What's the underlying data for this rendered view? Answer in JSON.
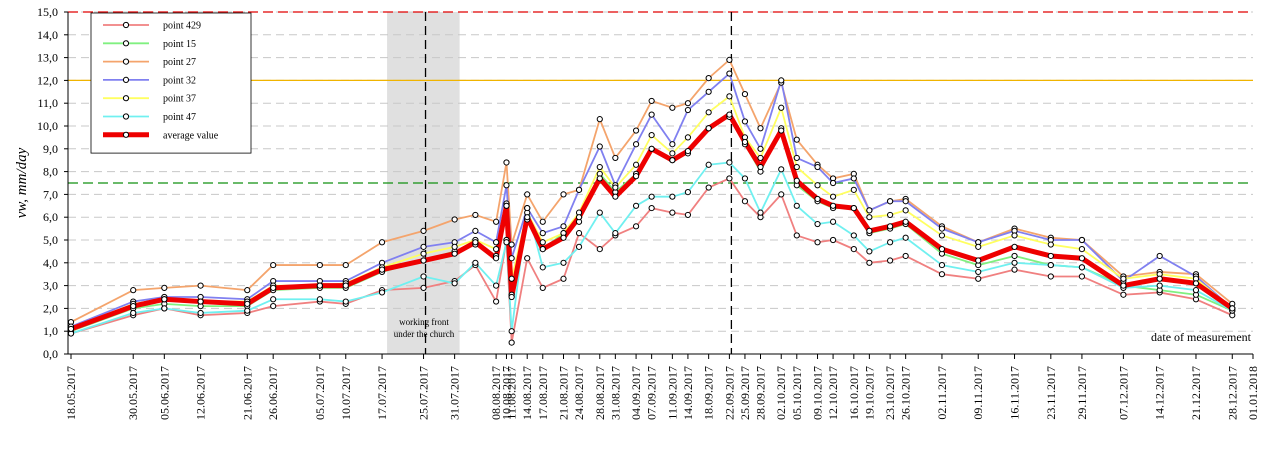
{
  "chart_data": {
    "type": "line",
    "y_label": "vw, mm/day",
    "x_label": "date of measurement",
    "annotations": [
      "working front",
      "under the church"
    ],
    "xlim": [
      "18.05.2017",
      "01.01.2018"
    ],
    "xticks": [
      "18.05.2017",
      "30.05.2017",
      "05.06.2017",
      "12.06.2017",
      "21.06.2017",
      "26.06.2017",
      "05.07.2017",
      "10.07.2017",
      "17.07.2017",
      "25.07.2017",
      "31.07.2017",
      "08.08.2017",
      "10.08.2017",
      "11.08.2017",
      "14.08.2017",
      "17.08.2017",
      "21.08.2017",
      "24.08.2017",
      "28.08.2017",
      "31.08.2017",
      "04.09.2017",
      "07.09.2017",
      "11.09.2017",
      "14.09.2017",
      "18.09.2017",
      "22.09.2017",
      "25.09.2017",
      "28.09.2017",
      "02.10.2017",
      "05.10.2017",
      "09.10.2017",
      "12.10.2017",
      "16.10.2017",
      "19.10.2017",
      "23.10.2017",
      "26.10.2017",
      "02.11.2017",
      "09.11.2017",
      "16.11.2017",
      "23.11.2017",
      "29.11.2017",
      "07.12.2017",
      "14.12.2017",
      "21.12.2017",
      "28.12.2017",
      "01.01.2018"
    ],
    "x": [
      "18.05.2017",
      "30.05.2017",
      "05.06.2017",
      "12.06.2017",
      "21.06.2017",
      "26.06.2017",
      "05.07.2017",
      "10.07.2017",
      "17.07.2017",
      "25.07.2017",
      "31.07.2017",
      "04.08.2017",
      "08.08.2017",
      "10.08.2017",
      "11.08.2017",
      "14.08.2017",
      "17.08.2017",
      "21.08.2017",
      "24.08.2017",
      "28.08.2017",
      "31.08.2017",
      "04.09.2017",
      "07.09.2017",
      "11.09.2017",
      "14.09.2017",
      "18.09.2017",
      "22.09.2017",
      "25.09.2017",
      "28.09.2017",
      "02.10.2017",
      "05.10.2017",
      "09.10.2017",
      "12.10.2017",
      "16.10.2017",
      "19.10.2017",
      "23.10.2017",
      "26.10.2017",
      "02.11.2017",
      "09.11.2017",
      "16.11.2017",
      "23.11.2017",
      "29.11.2017",
      "07.12.2017",
      "14.12.2017",
      "21.12.2017",
      "28.12.2017"
    ],
    "ylim": [
      0,
      15
    ],
    "yticks": [
      {
        "value": 0,
        "label": "0,0"
      },
      {
        "value": 1,
        "label": "1,0"
      },
      {
        "value": 2,
        "label": "2,0"
      },
      {
        "value": 3,
        "label": "3,0"
      },
      {
        "value": 4,
        "label": "4,0"
      },
      {
        "value": 5,
        "label": "5,0"
      },
      {
        "value": 6,
        "label": "6,0"
      },
      {
        "value": 7,
        "label": "7,0"
      },
      {
        "value": 8,
        "label": "8,0"
      },
      {
        "value": 9,
        "label": "9,0"
      },
      {
        "value": 10,
        "label": "10,0"
      },
      {
        "value": 11,
        "label": "11,0"
      },
      {
        "value": 12,
        "label": "12,0"
      },
      {
        "value": 13,
        "label": "13,0"
      },
      {
        "value": 14,
        "label": "14,0"
      },
      {
        "value": 15,
        "label": "15,0"
      }
    ],
    "grid": true,
    "legend_position": "upper left",
    "reference_lines": [
      {
        "value": 15,
        "color": "#e00000"
      },
      {
        "value": 12,
        "color": "#f0b400"
      },
      {
        "value": 7.5,
        "color": "#109010"
      }
    ],
    "vertical_lines": [
      "25.07.2017",
      "22.09.2017"
    ],
    "shaded_span": [
      "17.07.2017",
      "31.07.2017"
    ],
    "series": [
      {
        "name": "point 429",
        "color": "#f08080",
        "values": [
          0.9,
          1.7,
          2.0,
          1.7,
          1.8,
          2.1,
          2.3,
          2.2,
          2.8,
          2.9,
          3.2,
          3.9,
          2.3,
          5.0,
          0.5,
          4.2,
          2.9,
          3.3,
          5.3,
          4.6,
          5.2,
          5.6,
          6.4,
          6.2,
          6.1,
          7.3,
          7.7,
          6.7,
          6.0,
          7.0,
          5.2,
          4.9,
          5.0,
          4.6,
          4.0,
          4.1,
          4.3,
          3.5,
          3.3,
          3.7,
          3.4,
          3.4,
          2.6,
          2.7,
          2.4,
          1.7
        ]
      },
      {
        "name": "point 15",
        "color": "#80f080",
        "values": [
          1.0,
          2.0,
          2.2,
          2.1,
          2.1,
          2.8,
          2.9,
          2.9,
          3.6,
          4.1,
          4.5,
          4.8,
          4.3,
          6.6,
          2.6,
          5.9,
          4.6,
          5.3,
          5.8,
          7.9,
          7.1,
          7.9,
          9.0,
          8.5,
          8.8,
          9.9,
          10.4,
          9.2,
          8.0,
          9.9,
          7.4,
          6.7,
          6.4,
          6.4,
          5.3,
          5.5,
          5.7,
          4.4,
          3.9,
          4.3,
          3.9,
          3.8,
          3.0,
          2.8,
          2.6,
          1.9
        ]
      },
      {
        "name": "point 27",
        "color": "#f4a46c",
        "values": [
          1.4,
          2.8,
          2.9,
          3.0,
          2.8,
          3.9,
          3.9,
          3.9,
          4.9,
          5.4,
          5.9,
          6.1,
          5.8,
          8.4,
          4.8,
          7.0,
          5.8,
          7.0,
          7.2,
          10.3,
          8.6,
          9.8,
          11.1,
          10.8,
          11.0,
          12.1,
          12.9,
          11.4,
          9.9,
          11.9,
          9.4,
          8.3,
          7.7,
          7.9,
          6.3,
          6.7,
          6.8,
          5.6,
          4.9,
          5.5,
          5.1,
          5.0,
          3.4,
          3.6,
          3.5,
          2.2
        ]
      },
      {
        "name": "point 32",
        "color": "#8080f0",
        "values": [
          1.2,
          2.3,
          2.5,
          2.5,
          2.4,
          3.2,
          3.2,
          3.2,
          4.0,
          4.7,
          4.9,
          5.4,
          4.9,
          7.4,
          4.2,
          6.4,
          5.3,
          5.6,
          7.2,
          9.1,
          7.4,
          9.2,
          10.5,
          9.2,
          10.7,
          11.5,
          12.3,
          10.2,
          9.0,
          12.0,
          8.6,
          8.2,
          7.5,
          7.7,
          6.3,
          6.7,
          6.7,
          5.5,
          4.9,
          5.4,
          5.0,
          5.0,
          3.2,
          4.3,
          3.4,
          2.0
        ]
      },
      {
        "name": "point 37",
        "color": "#ffff60",
        "values": [
          1.1,
          2.2,
          2.4,
          2.3,
          2.3,
          3.0,
          3.0,
          3.1,
          3.8,
          4.4,
          4.7,
          5.0,
          4.6,
          6.5,
          3.3,
          6.2,
          4.9,
          5.3,
          6.2,
          8.2,
          7.3,
          8.3,
          9.6,
          8.8,
          9.5,
          10.6,
          11.3,
          9.5,
          8.6,
          10.8,
          8.2,
          7.4,
          6.9,
          7.2,
          6.0,
          6.1,
          6.3,
          5.2,
          4.7,
          5.2,
          4.8,
          4.6,
          3.3,
          3.5,
          3.3,
          2.0
        ]
      },
      {
        "name": "point 47",
        "color": "#70f0f0",
        "values": [
          0.9,
          1.8,
          2.0,
          1.8,
          1.9,
          2.4,
          2.4,
          2.3,
          2.7,
          3.4,
          3.1,
          4.0,
          3.0,
          4.9,
          1.0,
          6.4,
          3.8,
          4.0,
          4.7,
          6.2,
          5.3,
          6.5,
          6.9,
          6.9,
          7.1,
          8.3,
          8.4,
          7.7,
          6.2,
          8.1,
          6.5,
          5.7,
          5.8,
          5.2,
          4.5,
          4.9,
          5.1,
          3.9,
          3.6,
          4.0,
          3.9,
          3.8,
          2.9,
          3.0,
          2.8,
          1.9
        ]
      },
      {
        "name": "average value",
        "color": "#ee0000",
        "values": [
          1.1,
          2.1,
          2.4,
          2.3,
          2.2,
          2.9,
          3.0,
          3.0,
          3.7,
          4.1,
          4.4,
          4.9,
          4.2,
          6.5,
          2.5,
          6.0,
          4.6,
          5.1,
          6.0,
          7.7,
          6.9,
          7.8,
          9.0,
          8.5,
          8.9,
          9.9,
          10.5,
          9.3,
          8.2,
          9.8,
          7.6,
          6.8,
          6.5,
          6.4,
          5.4,
          5.6,
          5.8,
          4.6,
          4.1,
          4.7,
          4.3,
          4.2,
          3.0,
          3.3,
          3.1,
          2.0
        ]
      }
    ]
  }
}
